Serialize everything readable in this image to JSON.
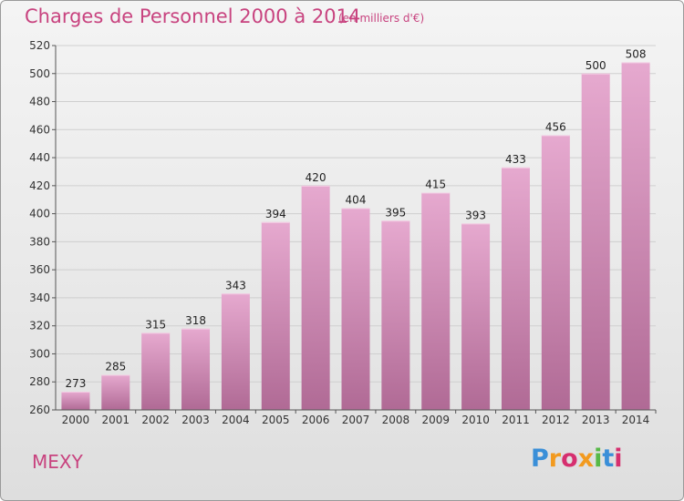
{
  "title": "Charges de Personnel 2000 à 2014",
  "subtitle": "(en milliers d'€)",
  "commune": "MEXY",
  "logo": {
    "text": "Proxiti",
    "letters": [
      {
        "ch": "P",
        "color": "#3a8fd8"
      },
      {
        "ch": "r",
        "color": "#f29a1f"
      },
      {
        "ch": "o",
        "color": "#d62f6f"
      },
      {
        "ch": "x",
        "color": "#f29a1f"
      },
      {
        "ch": "i",
        "color": "#57b947"
      },
      {
        "ch": "t",
        "color": "#3a8fd8"
      },
      {
        "ch": "i",
        "color": "#d62f6f"
      }
    ]
  },
  "colors": {
    "title": "#c8437f",
    "bar_top": "#e6a9cf",
    "bar_bottom": "#b06a95",
    "grid": "#cfcfcf",
    "axis": "#555555"
  },
  "chart_data": {
    "type": "bar",
    "title": "Charges de Personnel 2000 à 2014",
    "subtitle": "(en milliers d'€)",
    "categories": [
      "2000",
      "2001",
      "2002",
      "2003",
      "2004",
      "2005",
      "2006",
      "2007",
      "2008",
      "2009",
      "2010",
      "2011",
      "2012",
      "2013",
      "2014"
    ],
    "values": [
      273,
      285,
      315,
      318,
      343,
      394,
      420,
      404,
      395,
      415,
      393,
      433,
      456,
      500,
      508
    ],
    "ylim": [
      260,
      520
    ],
    "yticks": [
      260,
      280,
      300,
      320,
      340,
      360,
      380,
      400,
      420,
      440,
      460,
      480,
      500,
      520
    ],
    "grid": true,
    "data_labels": true
  }
}
